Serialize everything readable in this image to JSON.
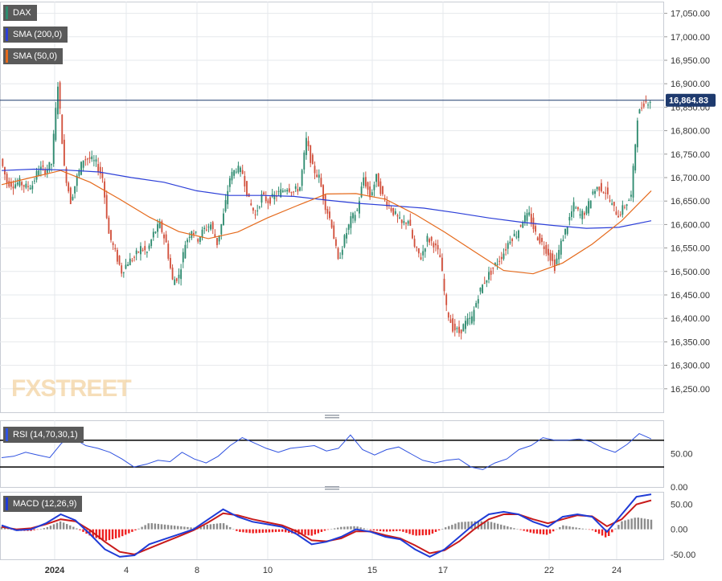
{
  "chart_data": [
    {
      "type": "candlestick",
      "instrument": "DAX",
      "last_price": "16,864.83",
      "ylim": [
        16200,
        17075
      ],
      "yticks": [
        "17,050.00",
        "17,000.00",
        "16,950.00",
        "16,900.00",
        "16,850.00",
        "16,800.00",
        "16,750.00",
        "16,700.00",
        "16,650.00",
        "16,600.00",
        "16,550.00",
        "16,500.00",
        "16,450.00",
        "16,400.00",
        "16,350.00",
        "16,300.00",
        "16,250.00"
      ],
      "xticks": [
        "2024",
        "4",
        "8",
        "10",
        "15",
        "17",
        "22",
        "24"
      ],
      "grid": true,
      "price_path": [
        16740,
        16690,
        16685,
        16690,
        16680,
        16685,
        16720,
        16715,
        16730,
        16900,
        16720,
        16650,
        16700,
        16740,
        16740,
        16730,
        16700,
        16580,
        16540,
        16500,
        16520,
        16530,
        16550,
        16540,
        16580,
        16600,
        16560,
        16480,
        16490,
        16560,
        16590,
        16570,
        16590,
        16600,
        16560,
        16620,
        16700,
        16720,
        16710,
        16650,
        16620,
        16660,
        16650,
        16660,
        16670,
        16680,
        16670,
        16680,
        16780,
        16720,
        16700,
        16640,
        16600,
        16520,
        16570,
        16610,
        16630,
        16700,
        16660,
        16700,
        16660,
        16640,
        16620,
        16600,
        16610,
        16550,
        16530,
        16570,
        16560,
        16530,
        16420,
        16380,
        16370,
        16390,
        16400,
        16450,
        16480,
        16500,
        16520,
        16540,
        16570,
        16580,
        16610,
        16620,
        16580,
        16560,
        16540,
        16510,
        16560,
        16600,
        16640,
        16620,
        16630,
        16670,
        16680,
        16670,
        16640,
        16620,
        16640,
        16660,
        16830,
        16860,
        16865
      ],
      "series": [
        {
          "name": "SMA (200,0)",
          "color": "#2c3fd8",
          "values": [
            16715,
            16718,
            16716,
            16712,
            16700,
            16690,
            16672,
            16662,
            16662,
            16660,
            16652,
            16645,
            16640,
            16635,
            16625,
            16614,
            16605,
            16598,
            16592,
            16594,
            16608
          ]
        },
        {
          "name": "SMA (50,0)",
          "color": "#e56a1c",
          "values": [
            16685,
            16700,
            16715,
            16690,
            16654,
            16616,
            16585,
            16570,
            16584,
            16614,
            16640,
            16665,
            16666,
            16654,
            16622,
            16584,
            16543,
            16502,
            16495,
            16518,
            16558,
            16608,
            16672
          ]
        }
      ],
      "legend": [
        "DAX",
        "SMA (200,0)",
        "SMA (50,0)"
      ],
      "watermark": "FXSTREET"
    },
    {
      "type": "line",
      "name": "RSI (14,70,30,1)",
      "color": "#2f52e0",
      "ylim": [
        0,
        100
      ],
      "levels": [
        70,
        30
      ],
      "yticks": [
        "50.00",
        "0.00"
      ],
      "values": [
        44,
        46,
        52,
        48,
        44,
        66,
        73,
        62,
        58,
        52,
        42,
        30,
        34,
        40,
        38,
        52,
        42,
        36,
        46,
        62,
        74,
        66,
        58,
        52,
        58,
        60,
        62,
        54,
        58,
        78,
        56,
        48,
        56,
        60,
        50,
        40,
        36,
        40,
        42,
        30,
        26,
        36,
        42,
        56,
        62,
        74,
        70,
        70,
        72,
        68,
        58,
        52,
        64,
        80,
        72
      ]
    },
    {
      "type": "line",
      "name": "MACD (12,26,9)",
      "ylim": [
        -60,
        75
      ],
      "yticks": [
        "50.00",
        "0.00",
        "-50.00"
      ],
      "macd_values": [
        8,
        -2,
        0,
        12,
        30,
        18,
        -10,
        -40,
        -55,
        -52,
        -30,
        -20,
        -10,
        0,
        20,
        40,
        25,
        15,
        10,
        5,
        -10,
        -30,
        -25,
        -15,
        0,
        -5,
        -15,
        -20,
        -40,
        -55,
        -40,
        -15,
        10,
        30,
        35,
        30,
        15,
        5,
        25,
        30,
        25,
        -5,
        30,
        65,
        70
      ],
      "signal_values": [
        5,
        0,
        2,
        10,
        20,
        16,
        -2,
        -25,
        -45,
        -50,
        -38,
        -26,
        -14,
        -2,
        14,
        32,
        28,
        20,
        14,
        8,
        -4,
        -22,
        -24,
        -18,
        -4,
        -4,
        -12,
        -18,
        -32,
        -48,
        -42,
        -24,
        0,
        20,
        30,
        30,
        20,
        12,
        20,
        28,
        26,
        6,
        20,
        50,
        58
      ],
      "macd_color": "#1f3bd6",
      "signal_color": "#c81a1a"
    }
  ]
}
